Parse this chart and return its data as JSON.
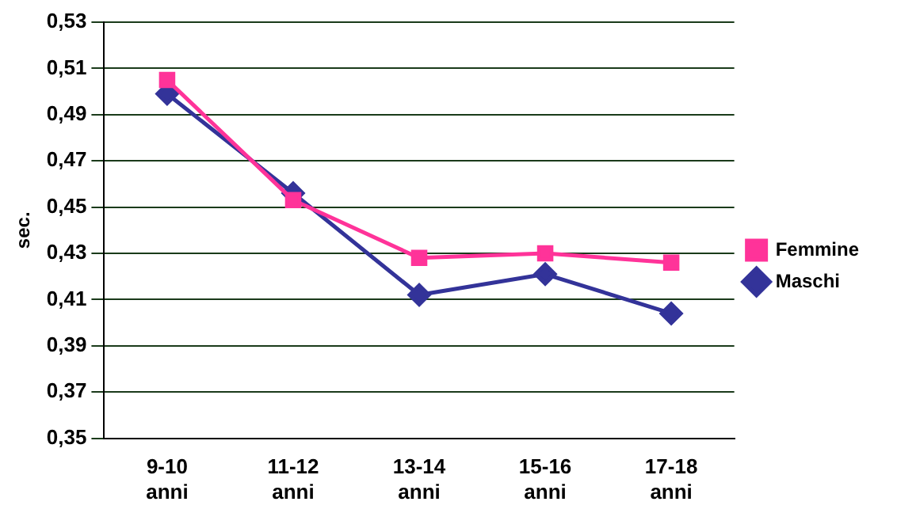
{
  "chart_data": {
    "type": "line",
    "ylabel": "sec.",
    "categories": [
      "9-10 anni",
      "11-12 anni",
      "13-14 anni",
      "15-16 anni",
      "17-18 anni"
    ],
    "series": [
      {
        "name": "Maschi",
        "color": "#333399",
        "marker": "diamond",
        "values": [
          0.499,
          0.456,
          0.412,
          0.421,
          0.404
        ]
      },
      {
        "name": "Femmine",
        "color": "#ff3399",
        "marker": "square",
        "values": [
          0.505,
          0.453,
          0.428,
          0.43,
          0.426
        ]
      }
    ],
    "ylim": [
      0.35,
      0.53
    ],
    "yticks": [
      {
        "value": 0.35,
        "label": "0,35"
      },
      {
        "value": 0.37,
        "label": "0,37"
      },
      {
        "value": 0.39,
        "label": "0,39"
      },
      {
        "value": 0.41,
        "label": "0,41"
      },
      {
        "value": 0.43,
        "label": "0,43"
      },
      {
        "value": 0.45,
        "label": "0,45"
      },
      {
        "value": 0.47,
        "label": "0,47"
      },
      {
        "value": 0.49,
        "label": "0,49"
      },
      {
        "value": 0.51,
        "label": "0,51"
      },
      {
        "value": 0.53,
        "label": "0,53"
      }
    ],
    "grid": "y",
    "legend": "right",
    "line_style": "solid"
  }
}
